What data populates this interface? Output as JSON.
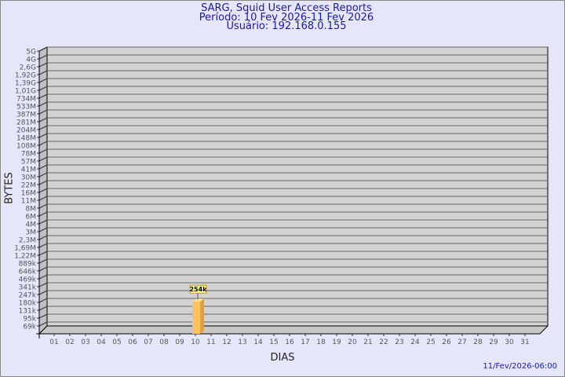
{
  "header": {
    "title": "SARG, Squid User Access Reports",
    "period": "Período: 10 Fev 2026-11 Fev 2026",
    "user": "Usuário: 192.168.0.155"
  },
  "footer": {
    "timestamp": "11/Fev/2026-06:00"
  },
  "colors": {
    "background": "#e6e6fa",
    "plot": "#d3d3d3",
    "bar": "#ffc060",
    "title": "#1a1aa0"
  },
  "chart_data": {
    "type": "bar",
    "style": "3d",
    "xlabel": "DIAS",
    "ylabel": "BYTES",
    "yscale": "log",
    "categories": [
      "01",
      "02",
      "03",
      "04",
      "05",
      "06",
      "07",
      "08",
      "09",
      "10",
      "11",
      "12",
      "13",
      "14",
      "15",
      "16",
      "17",
      "18",
      "19",
      "20",
      "21",
      "22",
      "23",
      "24",
      "25",
      "26",
      "27",
      "28",
      "29",
      "30",
      "31"
    ],
    "yticks": [
      "5G",
      "4G",
      "2,6G",
      "1,92G",
      "1,39G",
      "1,01G",
      "734M",
      "533M",
      "387M",
      "281M",
      "204M",
      "148M",
      "108M",
      "78M",
      "57M",
      "41M",
      "30M",
      "22M",
      "16M",
      "11M",
      "8M",
      "6M",
      "4M",
      "3M",
      "2,3M",
      "1,69M",
      "1,22M",
      "889k",
      "646k",
      "469k",
      "341k",
      "247k",
      "180k",
      "131k",
      "95k",
      "69k"
    ],
    "bars": [
      {
        "category": "10",
        "value": 254000,
        "label": "254k"
      }
    ],
    "grid": true
  }
}
